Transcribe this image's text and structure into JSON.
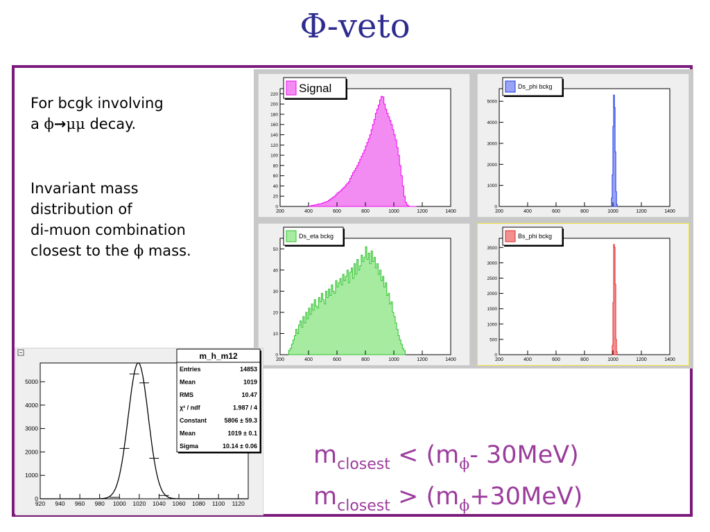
{
  "title": "Φ-veto",
  "description": {
    "line1": "For bcgk involving",
    "line2_prefix": "a ",
    "line2_phi": "ϕ",
    "line2_arrow": "→",
    "line2_mumu": "μμ",
    "line2_suffix": " decay.",
    "para2_line1": "Invariant mass",
    "para2_line2": "distribution of",
    "para2_line3": "di-muon combination",
    "para2_line4_prefix": "closest to the ",
    "para2_line4_phi": "ϕ",
    "para2_line4_suffix": " mass."
  },
  "cuts": {
    "m": "m",
    "sub": "closest",
    "lt": " < (m",
    "gt": " > (m",
    "phi": "ϕ",
    "tail1": "- 30MeV)",
    "tail2": "+30MeV)"
  },
  "colors": {
    "title": "#2e2c8f",
    "frame": "#7b1a7a",
    "cuts_text": "#9b3c9c",
    "pad": "#efefef",
    "canvas": "#c8c8c8",
    "selected_pad_border": "#f2e33b",
    "signal_fill": "#f28cf2",
    "signal_line": "#ef08ef",
    "ds_phi_fill": "#9aa4f4",
    "ds_phi_line": "#1b33e9",
    "ds_eta_fill": "#a6eba0",
    "ds_eta_line": "#2fc12f",
    "bs_phi_fill": "#f19090",
    "bs_phi_line": "#e62828"
  },
  "icons": {
    "pad_handle": "collapse-square-icon"
  },
  "chart_data": [
    {
      "type": "bar",
      "legend": "Signal",
      "legend_position": "top-left",
      "grid": false,
      "xlim": [
        200,
        1400
      ],
      "ylim": [
        0,
        230
      ],
      "x_ticks": [
        200,
        400,
        600,
        800,
        1000,
        1200,
        1400
      ],
      "y_ticks": [
        0,
        20,
        40,
        60,
        80,
        100,
        120,
        140,
        160,
        180,
        200,
        220
      ],
      "bin_start": 400,
      "bin_width": 10,
      "values": [
        0,
        1,
        2,
        2,
        3,
        3,
        4,
        5,
        5,
        6,
        7,
        8,
        9,
        10,
        12,
        14,
        16,
        18,
        20,
        23,
        26,
        28,
        30,
        33,
        36,
        38,
        42,
        45,
        48,
        55,
        60,
        66,
        70,
        75,
        80,
        86,
        92,
        98,
        104,
        110,
        118,
        125,
        132,
        140,
        150,
        160,
        170,
        182,
        190,
        198,
        208,
        215,
        214,
        200,
        190,
        182,
        175,
        168,
        160,
        150,
        140,
        130,
        115,
        100,
        80,
        60,
        40,
        20,
        8,
        3,
        1,
        0,
        0,
        0,
        0,
        0
      ]
    },
    {
      "type": "bar",
      "legend": "Ds_phi bckg",
      "legend_position": "top-left",
      "grid": false,
      "xlim": [
        200,
        1400
      ],
      "ylim": [
        0,
        5600
      ],
      "x_ticks": [
        200,
        400,
        600,
        800,
        1000,
        1200,
        1400
      ],
      "y_ticks": [
        0,
        1000,
        2000,
        3000,
        4000,
        5000
      ],
      "bin_start": 990,
      "bin_width": 5,
      "values": [
        400,
        1500,
        3800,
        5300,
        4700,
        2600,
        700,
        100
      ]
    },
    {
      "type": "bar",
      "legend": "Ds_eta bckg",
      "legend_position": "top-left",
      "grid": false,
      "xlim": [
        200,
        1400
      ],
      "ylim": [
        0,
        55
      ],
      "x_ticks": [
        200,
        400,
        600,
        800,
        1000,
        1200,
        1400
      ],
      "y_ticks": [
        0,
        10,
        20,
        30,
        40,
        50
      ],
      "bin_start": 260,
      "bin_width": 10,
      "values": [
        2,
        3,
        5,
        7,
        9,
        12,
        10,
        14,
        16,
        13,
        18,
        15,
        20,
        17,
        22,
        19,
        24,
        21,
        26,
        23,
        22,
        27,
        25,
        29,
        26,
        24,
        30,
        27,
        31,
        28,
        33,
        30,
        29,
        35,
        32,
        34,
        36,
        33,
        38,
        35,
        37,
        40,
        34,
        39,
        41,
        36,
        43,
        38,
        45,
        40,
        42,
        47,
        44,
        46,
        51,
        45,
        48,
        43,
        49,
        44,
        46,
        41,
        43,
        38,
        40,
        35,
        37,
        32,
        34,
        28,
        29,
        24,
        25,
        20,
        18,
        15,
        12,
        9,
        7,
        5,
        3,
        2
      ]
    },
    {
      "type": "bar",
      "legend": "Bs_phi bckg",
      "legend_position": "top-left",
      "grid": false,
      "xlim": [
        200,
        1400
      ],
      "ylim": [
        0,
        3800
      ],
      "x_ticks": [
        200,
        400,
        600,
        800,
        1000,
        1200,
        1400
      ],
      "y_ticks": [
        0,
        500,
        1000,
        1500,
        2000,
        2500,
        3000,
        3500
      ],
      "bin_start": 995,
      "bin_width": 5,
      "values": [
        300,
        1700,
        3600,
        3500,
        2300,
        500,
        100
      ]
    },
    {
      "type": "line",
      "name": "m_h_m12",
      "legend_position": "top-right",
      "grid": false,
      "xlim": [
        920,
        1130
      ],
      "ylim": [
        0,
        5800
      ],
      "x_ticks": [
        920,
        940,
        960,
        980,
        1000,
        1020,
        1040,
        1060,
        1080,
        1100,
        1120
      ],
      "y_ticks": [
        0,
        1000,
        2000,
        3000,
        4000,
        5000
      ],
      "fit": {
        "constant": 5806,
        "mean": 1019,
        "sigma": 10.14
      },
      "points_x": [
        995,
        1005,
        1015,
        1025,
        1035,
        1045
      ],
      "points_y": [
        60,
        2150,
        5330,
        4950,
        1730,
        140
      ],
      "stats": {
        "title": "m_h_m12",
        "rows": [
          {
            "label": "Entries",
            "value": "14853"
          },
          {
            "label": "Mean",
            "value": "1019"
          },
          {
            "label": "RMS",
            "value": "10.47"
          },
          {
            "label": "χ² / ndf",
            "value": "1.987 / 4"
          },
          {
            "label": "Constant",
            "value": "5806 ± 59.3"
          },
          {
            "label": "Mean",
            "value": "1019 ± 0.1"
          },
          {
            "label": "Sigma",
            "value": "10.14 ± 0.06"
          }
        ]
      }
    }
  ]
}
